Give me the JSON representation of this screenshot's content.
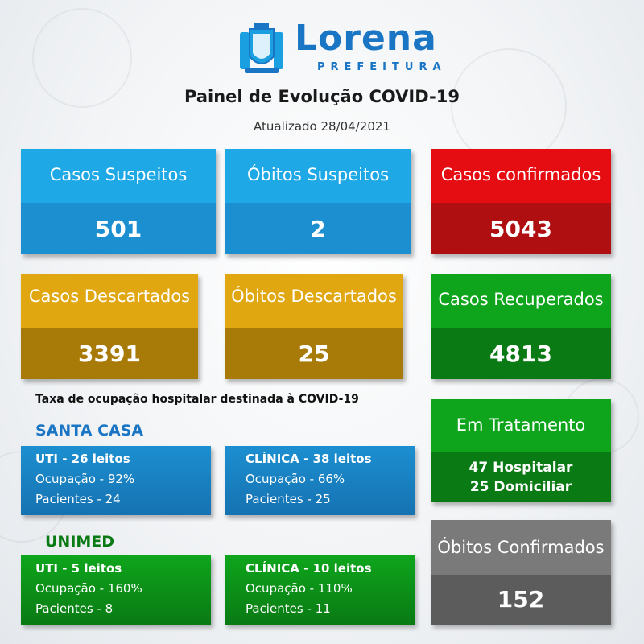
{
  "header": {
    "logo_name": "Lorena",
    "logo_sub": "PREFEITURA",
    "title": "Painel de Evolução COVID-19",
    "updated": "Atualizado 28/04/2021"
  },
  "cards": {
    "casos_suspeitos": {
      "label": "Casos Suspeitos",
      "value": "501"
    },
    "obitos_suspeitos": {
      "label": "Óbitos Suspeitos",
      "value": "2"
    },
    "casos_confirmados": {
      "label": "Casos confirmados",
      "value": "5043"
    },
    "casos_descartados": {
      "label": "Casos Descartados",
      "value": "3391"
    },
    "obitos_descartados": {
      "label": "Óbitos Descartados",
      "value": "25"
    },
    "casos_recuperados": {
      "label": "Casos Recuperados",
      "value": "4813"
    },
    "em_tratamento": {
      "label": "Em Tratamento",
      "line1": "47 Hospitalar",
      "line2": "25 Domiciliar"
    },
    "obitos_confirmados": {
      "label": "Óbitos Confirmados",
      "value": "152"
    }
  },
  "occupancy": {
    "title": "Taxa de ocupação hospitalar destinada à COVID-19",
    "santa_casa": {
      "name": "SANTA CASA",
      "uti": {
        "header": "UTI - 26 leitos",
        "ocupacao": "Ocupação - 92%",
        "pacientes": "Pacientes - 24"
      },
      "clinica": {
        "header": "CLÍNICA - 38 leitos",
        "ocupacao": "Ocupação - 66%",
        "pacientes": "Pacientes - 25"
      }
    },
    "unimed": {
      "name": "UNIMED",
      "uti": {
        "header": "UTI - 5 leitos",
        "ocupacao": "Ocupação - 160%",
        "pacientes": "Pacientes - 8"
      },
      "clinica": {
        "header": "CLÍNICA - 10 leitos",
        "ocupacao": "Ocupação - 110%",
        "pacientes": "Pacientes - 11"
      }
    }
  },
  "colors": {
    "brand_blue": "#1a75c4",
    "section_blue": "#1a75c4",
    "section_green": "#0a7a14"
  }
}
